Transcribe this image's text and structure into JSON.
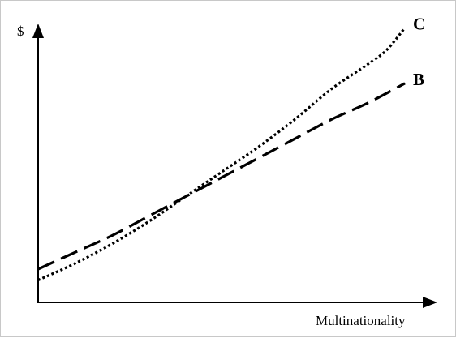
{
  "chart_data": {
    "type": "line",
    "title": "",
    "xlabel": "Multinationality",
    "ylabel": "$",
    "xlim": [
      0,
      1
    ],
    "ylim": [
      0,
      1
    ],
    "grid": false,
    "legend": "none",
    "series": [
      {
        "name": "B",
        "style": "dashed",
        "color": "#000000",
        "x": [
          0,
          0.1,
          0.2,
          0.3,
          0.4,
          0.5,
          0.6,
          0.7,
          0.8,
          0.9,
          1.0
        ],
        "y": [
          0.12,
          0.18,
          0.24,
          0.31,
          0.38,
          0.45,
          0.52,
          0.59,
          0.66,
          0.72,
          0.79
        ]
      },
      {
        "name": "C",
        "style": "dotted",
        "color": "#000000",
        "x": [
          0,
          0.1,
          0.2,
          0.3,
          0.4,
          0.5,
          0.6,
          0.7,
          0.8,
          0.9,
          0.95,
          1.0
        ],
        "y": [
          0.08,
          0.14,
          0.21,
          0.29,
          0.38,
          0.47,
          0.56,
          0.66,
          0.77,
          0.86,
          0.91,
          0.99
        ]
      }
    ]
  }
}
